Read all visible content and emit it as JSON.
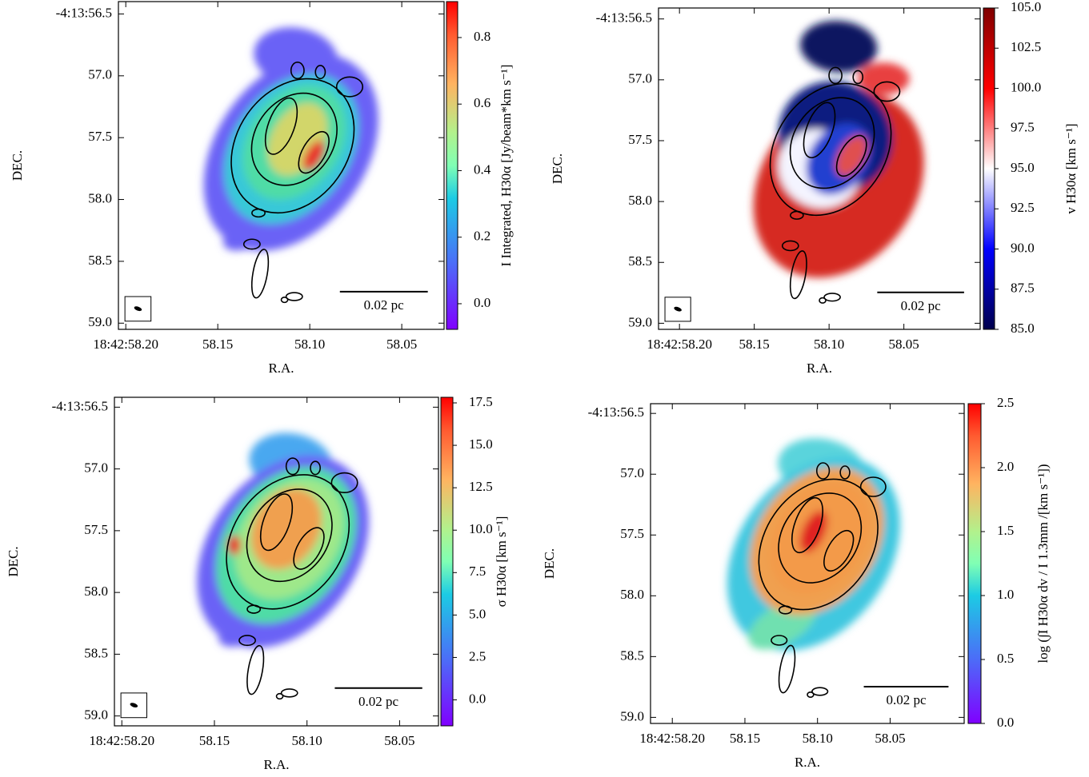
{
  "chart_data": [
    {
      "type": "image",
      "xlabel": "R.A.",
      "ylabel": "DEC.",
      "xlim": [
        58.204,
        58.027
      ],
      "ylim": [
        59.05,
        56.4
      ],
      "xticks": [
        {
          "value": 58.2,
          "label": "18:42:58.20"
        },
        58.15,
        {
          "value": 58.1,
          "label": "58.10"
        },
        58.05
      ],
      "yticks": [
        {
          "value": 56.5,
          "label": "-4:13:56.5"
        },
        {
          "value": 57,
          "label": "57.0"
        },
        57.5,
        {
          "value": 58,
          "label": "58.0"
        },
        58.5,
        {
          "value": 59,
          "label": "59.0"
        }
      ],
      "colorbar": {
        "label": "I Integrated, H30α [Jy/beam*km s⁻¹]",
        "colormap": "rainbow",
        "lim": [
          -0.077,
          0.908
        ],
        "ticks": [
          {
            "value": 0,
            "label": "0.0"
          },
          0.2,
          0.4,
          0.6,
          0.8
        ]
      },
      "scalebar": "0.02 pc",
      "beam": true
    },
    {
      "type": "image",
      "xlabel": "R.A.",
      "ylabel": "DEC.",
      "xlim": [
        58.214,
        57.999
      ],
      "ylim": [
        59.05,
        56.41
      ],
      "xticks": [
        {
          "value": 58.2,
          "label": "18:42:58.20"
        },
        58.15,
        {
          "value": 58.1,
          "label": "58.10"
        },
        58.05
      ],
      "yticks": [
        {
          "value": 56.5,
          "label": "-4:13:56.5"
        },
        {
          "value": 57,
          "label": "57.0"
        },
        57.5,
        {
          "value": 58,
          "label": "58.0"
        },
        58.5,
        {
          "value": 59,
          "label": "59.0"
        }
      ],
      "colorbar": {
        "label": "v H30α [km s⁻¹]",
        "colormap": "seismic",
        "lim": [
          85,
          105
        ],
        "ticks": [
          {
            "value": 85,
            "label": "85.0"
          },
          87.5,
          {
            "value": 90,
            "label": "90.0"
          },
          92.5,
          {
            "value": 95,
            "label": "95.0"
          },
          97.5,
          {
            "value": 100,
            "label": "100.0"
          },
          102.5,
          {
            "value": 105,
            "label": "105.0"
          }
        ]
      },
      "scalebar": "0.02 pc",
      "beam": true
    },
    {
      "type": "image",
      "xlabel": "R.A.",
      "ylabel": "DEC.",
      "xlim": [
        58.204,
        58.029
      ],
      "ylim": [
        59.08,
        56.42
      ],
      "xticks": [
        {
          "value": 58.2,
          "label": "18:42:58.20"
        },
        58.15,
        {
          "value": 58.1,
          "label": "58.10"
        },
        58.05
      ],
      "yticks": [
        {
          "value": 56.5,
          "label": "-4:13:56.5"
        },
        {
          "value": 57,
          "label": "57.0"
        },
        57.5,
        {
          "value": 58,
          "label": "58.0"
        },
        58.5,
        {
          "value": 59,
          "label": "59.0"
        }
      ],
      "colorbar": {
        "label": "σ H30α [km s⁻¹]",
        "colormap": "rainbow",
        "lim": [
          -1.53,
          17.83
        ],
        "ticks": [
          {
            "value": 0,
            "label": "0.0"
          },
          2.5,
          {
            "value": 5,
            "label": "5.0"
          },
          7.5,
          {
            "value": 10,
            "label": "10.0"
          },
          12.5,
          {
            "value": 15,
            "label": "15.0"
          },
          17.5
        ]
      },
      "scalebar": "0.02 pc",
      "beam": true
    },
    {
      "type": "image",
      "xlabel": "R.A.",
      "ylabel": "DEC.",
      "xlim": [
        58.215,
        57.999
      ],
      "ylim": [
        59.05,
        56.42
      ],
      "xticks": [
        {
          "value": 58.2,
          "label": "18:42:58.20"
        },
        58.15,
        {
          "value": 58.1,
          "label": "58.10"
        },
        58.05
      ],
      "yticks": [
        {
          "value": 56.5,
          "label": "-4:13:56.5"
        },
        {
          "value": 57,
          "label": "57.0"
        },
        57.5,
        {
          "value": 58,
          "label": "58.0"
        },
        58.5,
        {
          "value": 59,
          "label": "59.0"
        }
      ],
      "colorbar": {
        "label": "log (∫I H30α dv / I 1.3mm /[km s⁻¹])",
        "colormap": "rainbow",
        "lim": [
          0,
          2.5
        ],
        "ticks": [
          {
            "value": 0,
            "label": "0.0"
          },
          0.5,
          {
            "value": 1,
            "label": "1.0"
          },
          1.5,
          {
            "value": 2,
            "label": "2.0"
          },
          2.5
        ]
      },
      "scalebar": "0.02 pc",
      "beam": false
    }
  ]
}
